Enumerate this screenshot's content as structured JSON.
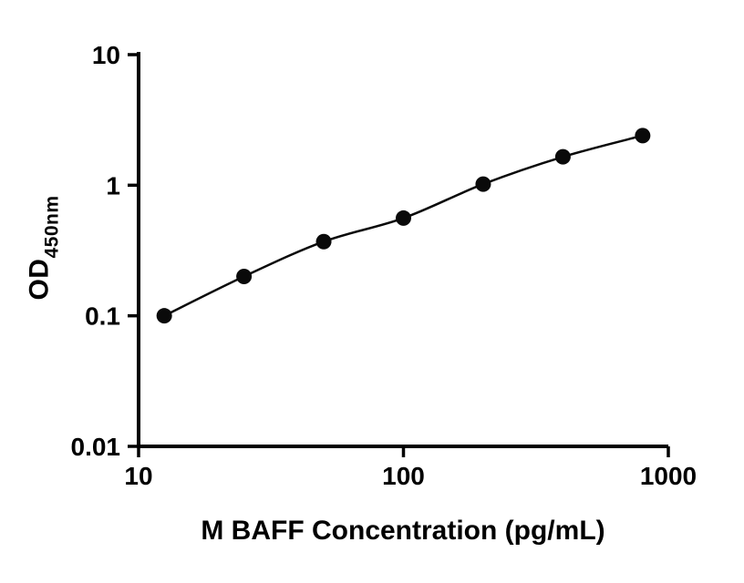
{
  "chart_data": {
    "type": "scatter",
    "title": "",
    "xlabel": "M BAFF Concentration (pg/mL)",
    "ylabel_main": "OD",
    "ylabel_sub": "450nm",
    "xscale": "log",
    "yscale": "log",
    "xlim": [
      10,
      1000
    ],
    "ylim": [
      0.01,
      10
    ],
    "x_ticks": [
      10,
      100,
      1000
    ],
    "x_tick_labels": [
      "10",
      "100",
      "1000"
    ],
    "y_ticks": [
      0.01,
      0.1,
      1,
      10
    ],
    "y_tick_labels": [
      "0.01",
      "0.1",
      "1",
      "10"
    ],
    "grid": false,
    "legend": null,
    "marker_color": "#0a0a0a",
    "line_color": "#0a0a0a",
    "axis_color": "#000000",
    "x": [
      12.5,
      25,
      50,
      100,
      200,
      400,
      800
    ],
    "y": [
      0.1,
      0.2,
      0.37,
      0.56,
      1.02,
      1.65,
      2.4
    ]
  }
}
